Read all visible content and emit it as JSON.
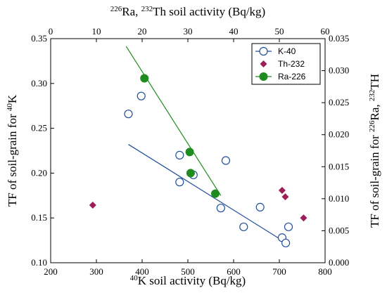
{
  "chart_data": {
    "type": "scatter",
    "axes": {
      "bottom": {
        "label_parts": [
          {
            "t": "40",
            "sup": true
          },
          {
            "t": "K soil activity (Bq/kg)"
          }
        ],
        "lim": [
          200,
          800
        ],
        "ticks": [
          200,
          300,
          400,
          500,
          600,
          700,
          800
        ]
      },
      "top": {
        "label_parts": [
          {
            "t": "226",
            "sup": true
          },
          {
            "t": "Ra, "
          },
          {
            "t": "232",
            "sup": true
          },
          {
            "t": "Th soil activity (Bq/kg)"
          }
        ],
        "lim": [
          0,
          60
        ],
        "ticks": [
          0,
          10,
          20,
          30,
          40,
          50,
          60
        ]
      },
      "left": {
        "label_parts": [
          {
            "t": "TF of soil-grain for "
          },
          {
            "t": "40",
            "sup": true
          },
          {
            "t": "K"
          }
        ],
        "lim": [
          0.1,
          0.35
        ],
        "ticks": [
          "0.10",
          "0.15",
          "0.20",
          "0.25",
          "0.30",
          "0.35"
        ]
      },
      "right": {
        "label_parts": [
          {
            "t": "TF of soil-grain for "
          },
          {
            "t": "226",
            "sup": true
          },
          {
            "t": "Ra, "
          },
          {
            "t": "232",
            "sup": true
          },
          {
            "t": "TH"
          }
        ],
        "lim": [
          0.0,
          0.035
        ],
        "ticks": [
          "0.000",
          "0.005",
          "0.010",
          "0.015",
          "0.020",
          "0.025",
          "0.030",
          "0.035"
        ]
      }
    },
    "series": [
      {
        "name": "K-40",
        "marker": "open-circle",
        "color": "#1f4e9c",
        "x_axis": "bottom",
        "y_axis": "left",
        "points": [
          [
            370,
            0.266
          ],
          [
            398,
            0.286
          ],
          [
            482,
            0.22
          ],
          [
            482,
            0.19
          ],
          [
            512,
            0.198
          ],
          [
            572,
            0.161
          ],
          [
            583,
            0.214
          ],
          [
            622,
            0.14
          ],
          [
            658,
            0.162
          ],
          [
            706,
            0.128
          ],
          [
            714,
            0.122
          ],
          [
            720,
            0.14
          ]
        ],
        "fit": [
          [
            370,
            0.232
          ],
          [
            706,
            0.125
          ]
        ]
      },
      {
        "name": "Th-232",
        "marker": "filled-diamond",
        "color": "#9c1f5a",
        "x_axis": "top",
        "y_axis": "right",
        "points": [
          [
            9.2,
            0.009
          ],
          [
            50.6,
            0.0113
          ],
          [
            51.3,
            0.0103
          ],
          [
            55.3,
            0.007
          ]
        ]
      },
      {
        "name": "Ra-226",
        "marker": "filled-circle",
        "color": "#1f8c1f",
        "x_axis": "top",
        "y_axis": "right",
        "points": [
          [
            20.5,
            0.0288
          ],
          [
            30.4,
            0.0173
          ],
          [
            30.6,
            0.014
          ],
          [
            36.0,
            0.0108
          ]
        ],
        "fit": [
          [
            16.5,
            0.0338
          ],
          [
            37.2,
            0.0105
          ]
        ]
      }
    ],
    "legend": {
      "placement": "top-right"
    }
  }
}
